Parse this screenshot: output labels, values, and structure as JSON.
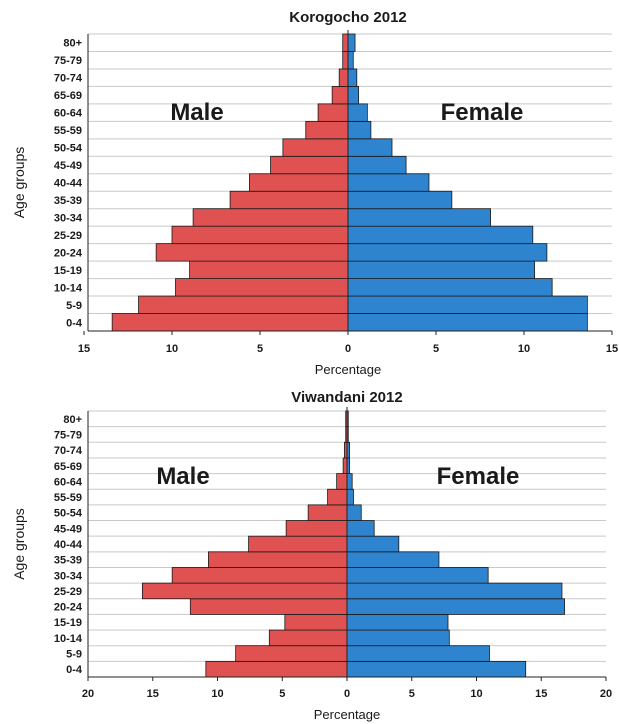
{
  "chart_data": [
    {
      "type": "bar",
      "title": "Korogocho 2012",
      "xlabel": "Percentage",
      "ylabel": "Age groups",
      "categories": [
        "0-4",
        "5-9",
        "10-14",
        "15-19",
        "20-24",
        "25-29",
        "30-34",
        "35-39",
        "40-44",
        "45-49",
        "50-54",
        "55-59",
        "60-64",
        "65-69",
        "70-74",
        "75-79",
        "80+"
      ],
      "series": [
        {
          "name": "Male",
          "color": "#e05151",
          "values": [
            13.4,
            11.9,
            9.8,
            9.0,
            10.9,
            10.0,
            8.8,
            6.7,
            5.6,
            4.4,
            3.7,
            2.4,
            1.7,
            0.9,
            0.5,
            0.3,
            0.3
          ]
        },
        {
          "name": "Female",
          "color": "#2f84cf",
          "values": [
            13.6,
            13.6,
            11.6,
            10.6,
            11.3,
            10.5,
            8.1,
            5.9,
            4.6,
            3.3,
            2.5,
            1.3,
            1.1,
            0.6,
            0.5,
            0.3,
            0.4
          ]
        }
      ],
      "xlim": [
        -15,
        15
      ],
      "xticks": [
        "15",
        "10",
        "5",
        "0",
        "5",
        "10",
        "15"
      ],
      "grid": true
    },
    {
      "type": "bar",
      "title": "Viwandani 2012",
      "xlabel": "Percentage",
      "ylabel": "Age groups",
      "categories": [
        "0-4",
        "5-9",
        "10-14",
        "15-19",
        "20-24",
        "25-29",
        "30-34",
        "35-39",
        "40-44",
        "45-49",
        "50-54",
        "55-59",
        "60-64",
        "65-69",
        "70-74",
        "75-79",
        "80+"
      ],
      "series": [
        {
          "name": "Male",
          "color": "#e05151",
          "values": [
            10.9,
            8.6,
            6.0,
            4.8,
            12.1,
            15.8,
            13.5,
            10.7,
            7.6,
            4.7,
            3.0,
            1.5,
            0.8,
            0.3,
            0.2,
            0.1,
            0.1
          ]
        },
        {
          "name": "Female",
          "color": "#2f84cf",
          "values": [
            13.8,
            11.0,
            7.9,
            7.8,
            16.8,
            16.6,
            10.9,
            7.1,
            4.0,
            2.1,
            1.1,
            0.5,
            0.4,
            0.2,
            0.2,
            0.1,
            0.1
          ]
        }
      ],
      "xlim": [
        -20,
        20
      ],
      "xticks": [
        "20",
        "15",
        "10",
        "5",
        "0",
        "5",
        "10",
        "15",
        "20"
      ],
      "grid": true
    }
  ]
}
